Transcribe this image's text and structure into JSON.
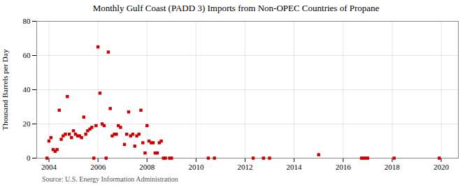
{
  "chart_data": {
    "type": "scatter",
    "title": "Monthly Gulf Coast (PADD 3) Imports from Non-OPEC Countries of Propane",
    "y_label": "Thousand Barrels per Day",
    "source": "Source: U.S. Energy Information Administration",
    "color": "#cc0000",
    "marker": "square",
    "grid": true,
    "xlim": [
      2003.5,
      2020.7
    ],
    "ylim": [
      0,
      80
    ],
    "xticks": [
      2004,
      2006,
      2008,
      2010,
      2012,
      2014,
      2016,
      2018,
      2020
    ],
    "yticks": [
      0,
      20,
      40,
      60,
      80
    ],
    "x": [
      2003.92,
      2004.0,
      2004.08,
      2004.17,
      2004.25,
      2004.33,
      2004.42,
      2004.5,
      2004.58,
      2004.67,
      2004.75,
      2004.83,
      2004.92,
      2005.0,
      2005.08,
      2005.17,
      2005.25,
      2005.33,
      2005.42,
      2005.5,
      2005.58,
      2005.67,
      2005.75,
      2005.83,
      2005.92,
      2006.0,
      2006.08,
      2006.17,
      2006.25,
      2006.33,
      2006.42,
      2006.5,
      2006.58,
      2006.67,
      2006.75,
      2006.83,
      2006.92,
      2007.08,
      2007.17,
      2007.25,
      2007.33,
      2007.42,
      2007.5,
      2007.58,
      2007.67,
      2007.75,
      2007.83,
      2007.92,
      2008.0,
      2008.08,
      2008.17,
      2008.25,
      2008.33,
      2008.42,
      2008.5,
      2008.58,
      2008.67,
      2008.75,
      2008.92,
      2009.0,
      2010.5,
      2010.75,
      2012.33,
      2012.75,
      2013.0,
      2015.0,
      2016.75,
      2016.83,
      2016.92,
      2017.0,
      2018.08,
      2019.92
    ],
    "values": [
      0,
      10,
      12,
      5,
      4,
      5,
      28,
      11,
      13,
      14,
      36,
      14,
      12,
      16,
      14,
      13,
      13,
      12,
      24,
      14,
      16,
      17,
      18,
      0,
      19,
      65,
      38,
      20,
      19,
      0,
      62,
      29,
      13,
      14,
      14,
      19,
      18,
      8,
      14,
      27,
      13,
      14,
      7,
      13,
      14,
      28,
      9,
      3,
      19,
      10,
      9,
      9,
      3,
      3,
      9,
      10,
      0,
      0,
      0,
      0,
      0,
      0,
      0,
      0,
      0,
      2,
      0,
      0,
      0,
      0,
      0,
      0
    ]
  }
}
